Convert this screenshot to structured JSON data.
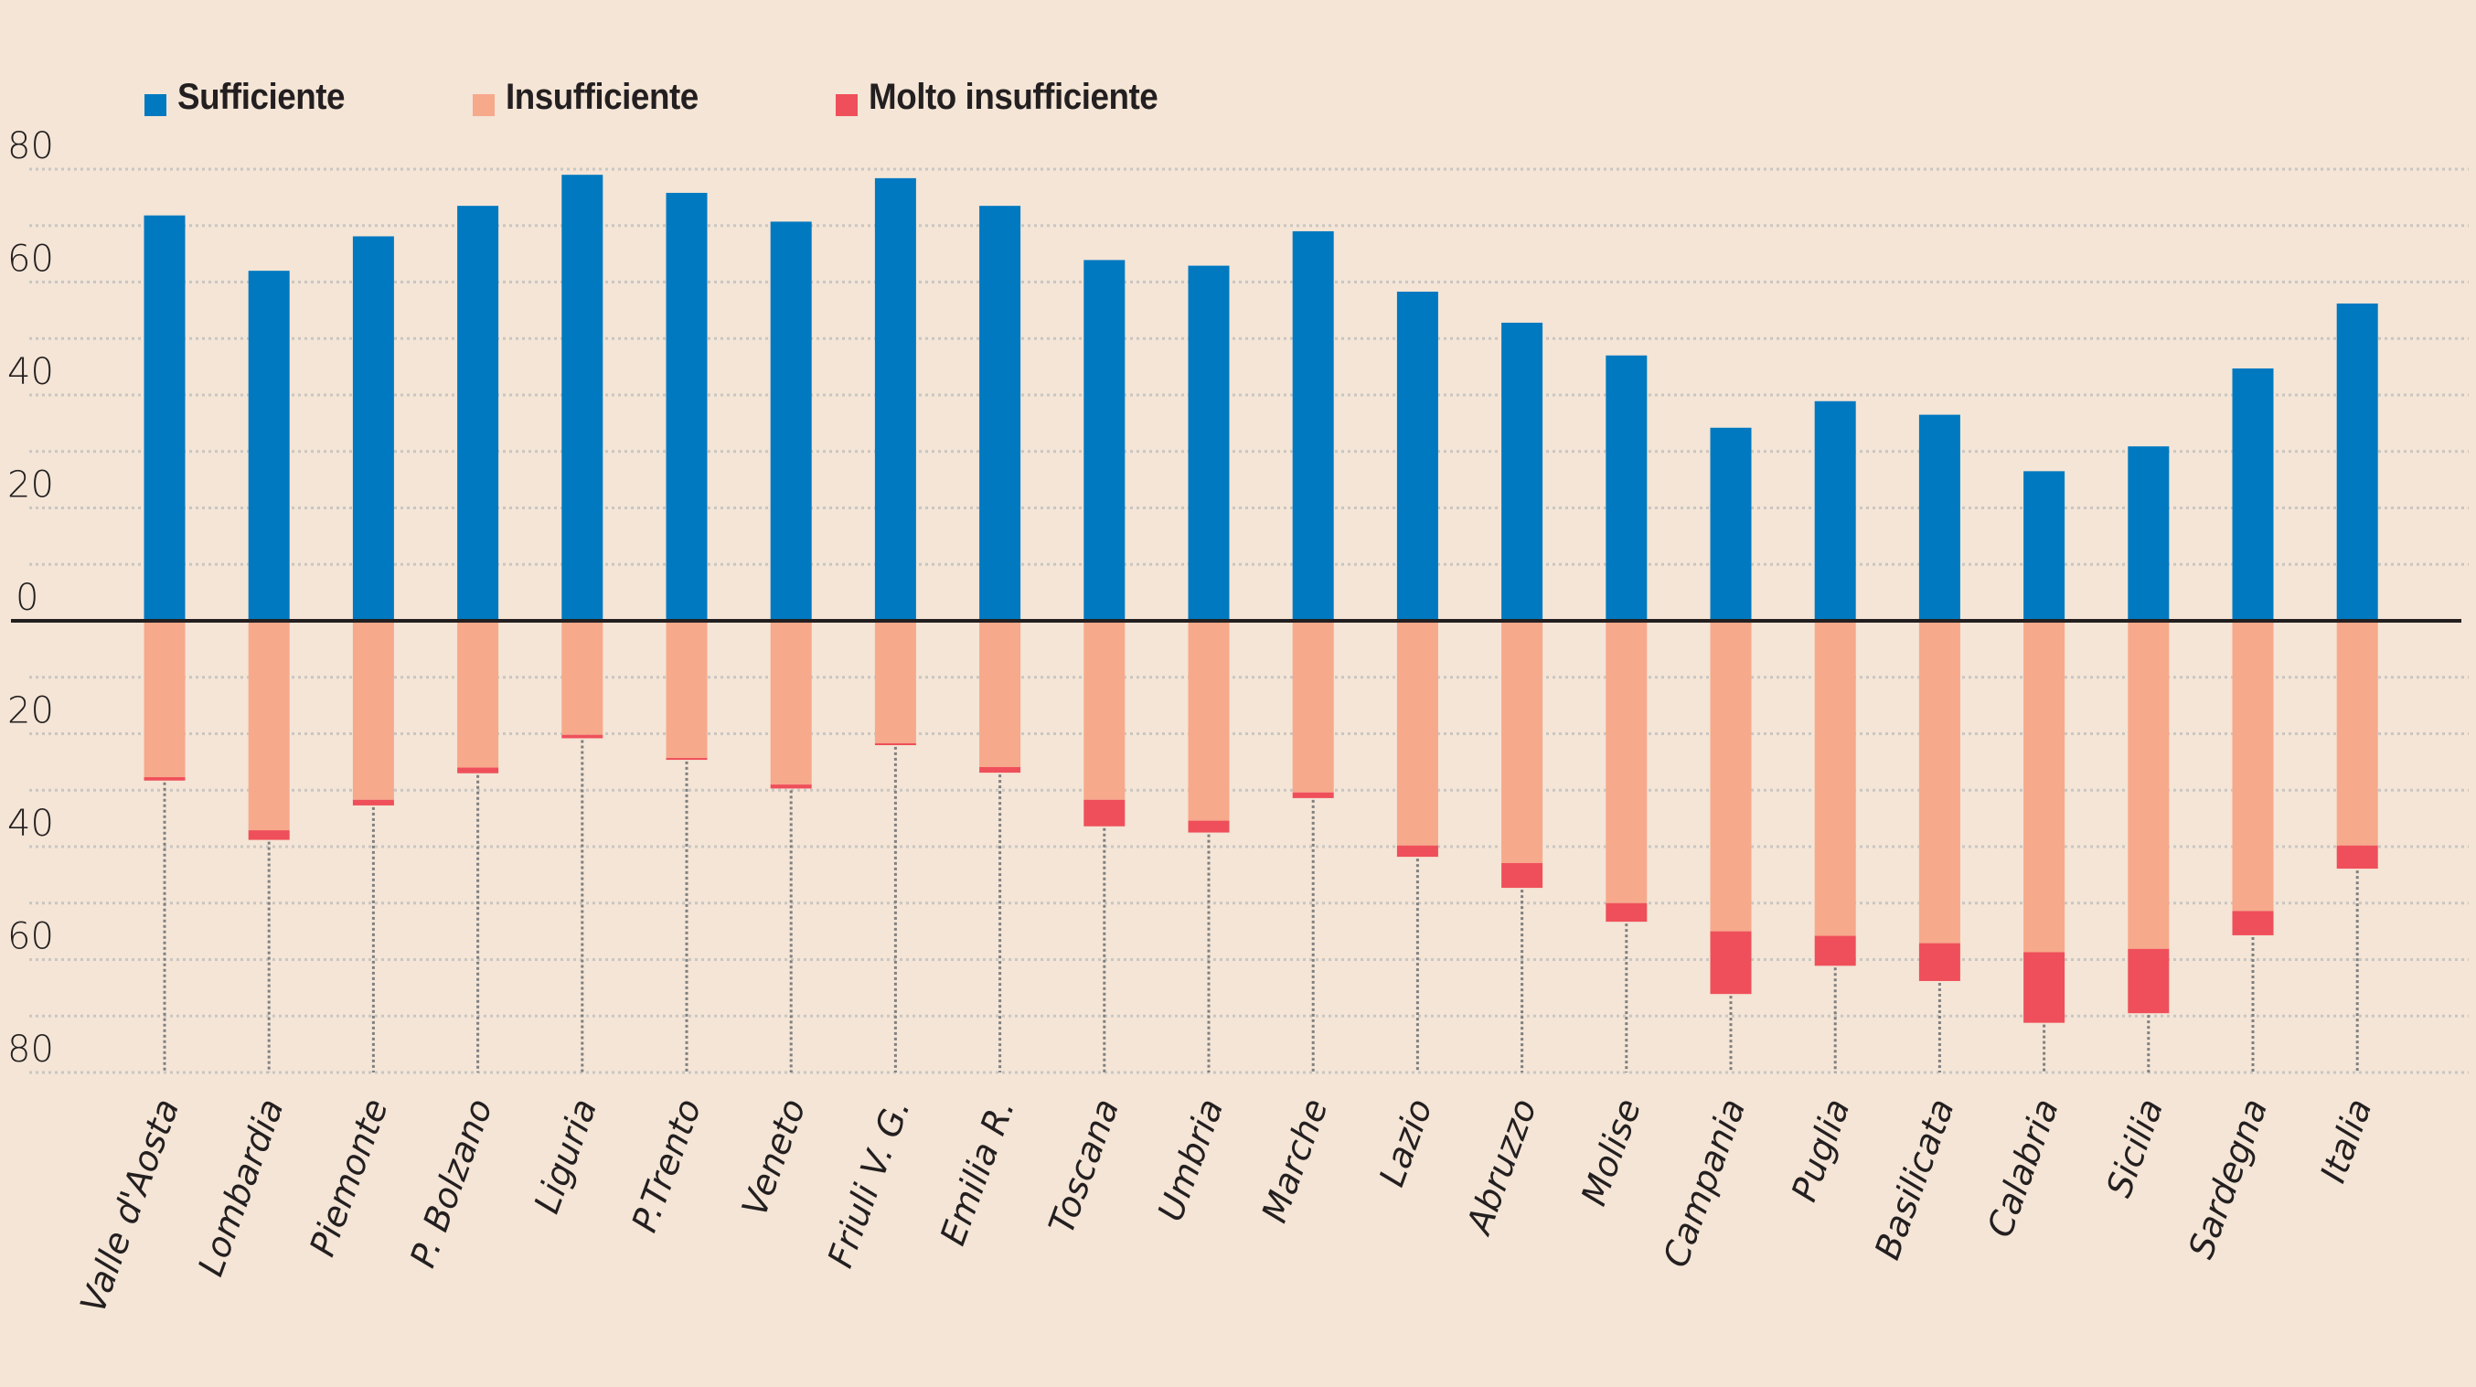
{
  "chart_data": {
    "type": "bar",
    "stacked": true,
    "diverging": true,
    "title": "",
    "xlabel": "",
    "ylabel": "",
    "ylim": [
      -80,
      80
    ],
    "yticks": [
      80,
      60,
      40,
      20,
      0,
      -20,
      -40,
      -60,
      -80
    ],
    "ytick_labels": [
      "80",
      "60",
      "40",
      "20",
      "0",
      "20",
      "40",
      "60",
      "80"
    ],
    "grid": true,
    "grid_step": 10,
    "legend_position": "top-left",
    "categories": [
      "Valle d'Aosta",
      "Lombardia",
      "Piemonte",
      "P. Bolzano",
      "Liguria",
      "P.Trento",
      "Veneto",
      "Friuli V. G.",
      "Emilia R.",
      "Toscana",
      "Umbria",
      "Marche",
      "Lazio",
      "Abruzzo",
      "Molise",
      "Campania",
      "Puglia",
      "Basilicata",
      "Calabria",
      "Sicilia",
      "Sardegna",
      "Italia"
    ],
    "series": [
      {
        "name": "Sufficiente",
        "color": "#0079c1",
        "direction": "up",
        "values": [
          71.8,
          62.0,
          68.1,
          73.5,
          79.0,
          75.8,
          70.7,
          78.4,
          73.5,
          63.9,
          62.9,
          69.0,
          58.3,
          52.8,
          47.0,
          34.2,
          38.9,
          36.5,
          26.5,
          30.9,
          44.7,
          56.2
        ]
      },
      {
        "name": "Insufficiente",
        "color": "#f7a98b",
        "direction": "down",
        "values": [
          27.7,
          37.1,
          31.7,
          26.0,
          20.2,
          24.3,
          29.0,
          21.7,
          25.9,
          31.7,
          35.4,
          30.4,
          39.8,
          42.9,
          50.0,
          55.0,
          55.8,
          57.1,
          58.7,
          58.1,
          51.4,
          39.8
        ]
      },
      {
        "name": "Molto insufficiente",
        "color": "#ef4f5a",
        "direction": "down",
        "values": [
          0.6,
          1.7,
          1.0,
          1.0,
          0.6,
          0.3,
          0.7,
          0.3,
          1.0,
          4.7,
          2.1,
          1.0,
          2.0,
          4.4,
          3.3,
          11.1,
          5.3,
          6.7,
          12.5,
          11.4,
          4.3,
          4.1
        ]
      }
    ]
  },
  "colors": {
    "background": "#f4e5d6",
    "text": "#231f20",
    "grid": "#c9c6c2",
    "leader": "#7f7f7f",
    "baseline": "#231f20"
  }
}
